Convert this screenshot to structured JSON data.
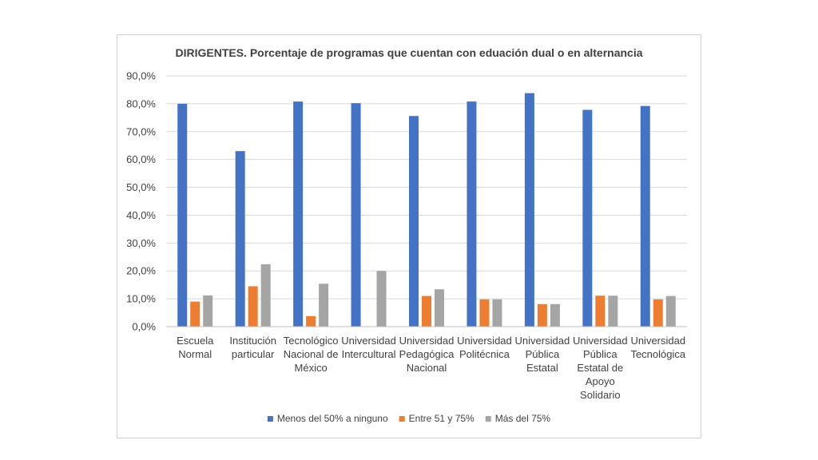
{
  "chart_data": {
    "type": "bar",
    "title": "DIRIGENTES. Porcentaje de programas que cuentan con eduación dual o en alternancia",
    "xlabel": "",
    "ylabel": "",
    "ylim": [
      0,
      90
    ],
    "y_ticks": [
      "0,0%",
      "10,0%",
      "20,0%",
      "30,0%",
      "40,0%",
      "50,0%",
      "60,0%",
      "70,0%",
      "80,0%",
      "90,0%"
    ],
    "grid": true,
    "legend_position": "bottom",
    "categories": [
      [
        "Escuela",
        "Normal"
      ],
      [
        "Institución",
        "particular"
      ],
      [
        "Tecnológico",
        "Nacional de",
        "México"
      ],
      [
        "Universidad",
        "Intercultural"
      ],
      [
        "Universidad",
        "Pedagógica",
        "Nacional"
      ],
      [
        "Universidad",
        "Politécnica"
      ],
      [
        "Universidad",
        "Pública",
        "Estatal"
      ],
      [
        "Universidad",
        "Pública",
        "Estatal de",
        "Apoyo",
        "Solidario"
      ],
      [
        "Universidad",
        "Tecnológica"
      ]
    ],
    "series": [
      {
        "name": "Menos del 50% a ninguno",
        "color": "#4472c4",
        "values": [
          80.0,
          63.0,
          80.8,
          80.2,
          75.6,
          80.8,
          83.8,
          77.8,
          79.2
        ]
      },
      {
        "name": "Entre 51 y 75%",
        "color": "#ed7d31",
        "values": [
          9.0,
          14.5,
          3.8,
          0.0,
          11.0,
          9.8,
          8.1,
          11.1,
          9.8
        ]
      },
      {
        "name": "Más del 75%",
        "color": "#a5a5a5",
        "values": [
          11.2,
          22.4,
          15.4,
          20.0,
          13.4,
          9.8,
          8.1,
          11.1,
          11.0
        ]
      }
    ]
  }
}
